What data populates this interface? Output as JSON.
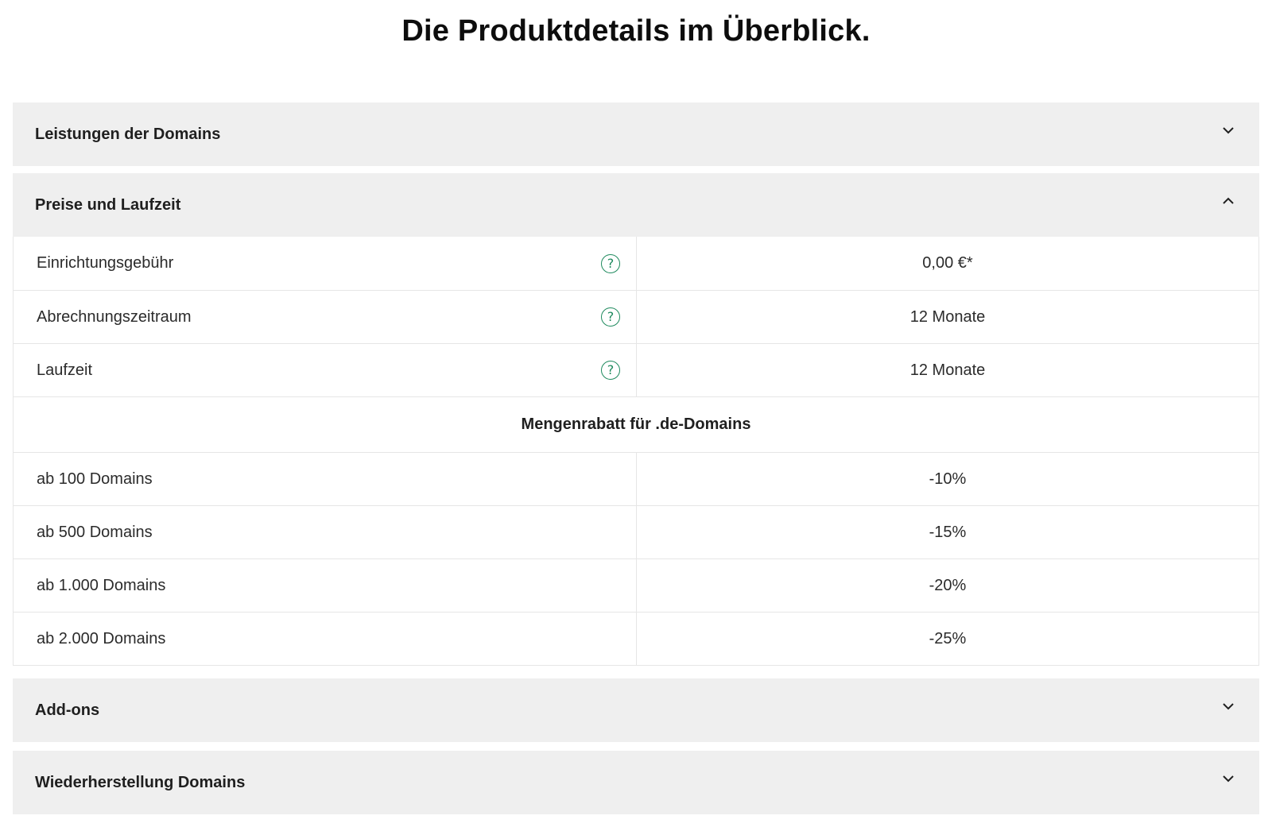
{
  "page_title": "Die Produktdetails im Überblick.",
  "accordions": [
    {
      "title": "Leistungen der Domains",
      "expanded": false,
      "icon": "chevron-down-icon"
    },
    {
      "title": "Preise und Laufzeit",
      "expanded": true,
      "icon": "chevron-up-icon",
      "rows": [
        {
          "label": "Einrichtungsgebühr",
          "value": "0,00 €*",
          "help": "?"
        },
        {
          "label": "Abrechnungszeitraum",
          "value": "12 Monate",
          "help": "?"
        },
        {
          "label": "Laufzeit",
          "value": "12 Monate",
          "help": "?"
        }
      ],
      "section_heading": "Mengenrabatt für .de-Domains",
      "discount_rows": [
        {
          "label": "ab 100 Domains",
          "value": "-10%"
        },
        {
          "label": "ab 500 Domains",
          "value": "-15%"
        },
        {
          "label": "ab 1.000 Domains",
          "value": "-20%"
        },
        {
          "label": "ab 2.000 Domains",
          "value": "-25%"
        }
      ]
    },
    {
      "title": "Add-ons",
      "expanded": false,
      "icon": "chevron-down-icon"
    },
    {
      "title": "Wiederherstellung Domains",
      "expanded": false,
      "icon": "chevron-down-icon"
    }
  ],
  "colors": {
    "accent": "#1f8a5e",
    "panel_bg": "#efefef",
    "border": "#e6e6e6"
  }
}
